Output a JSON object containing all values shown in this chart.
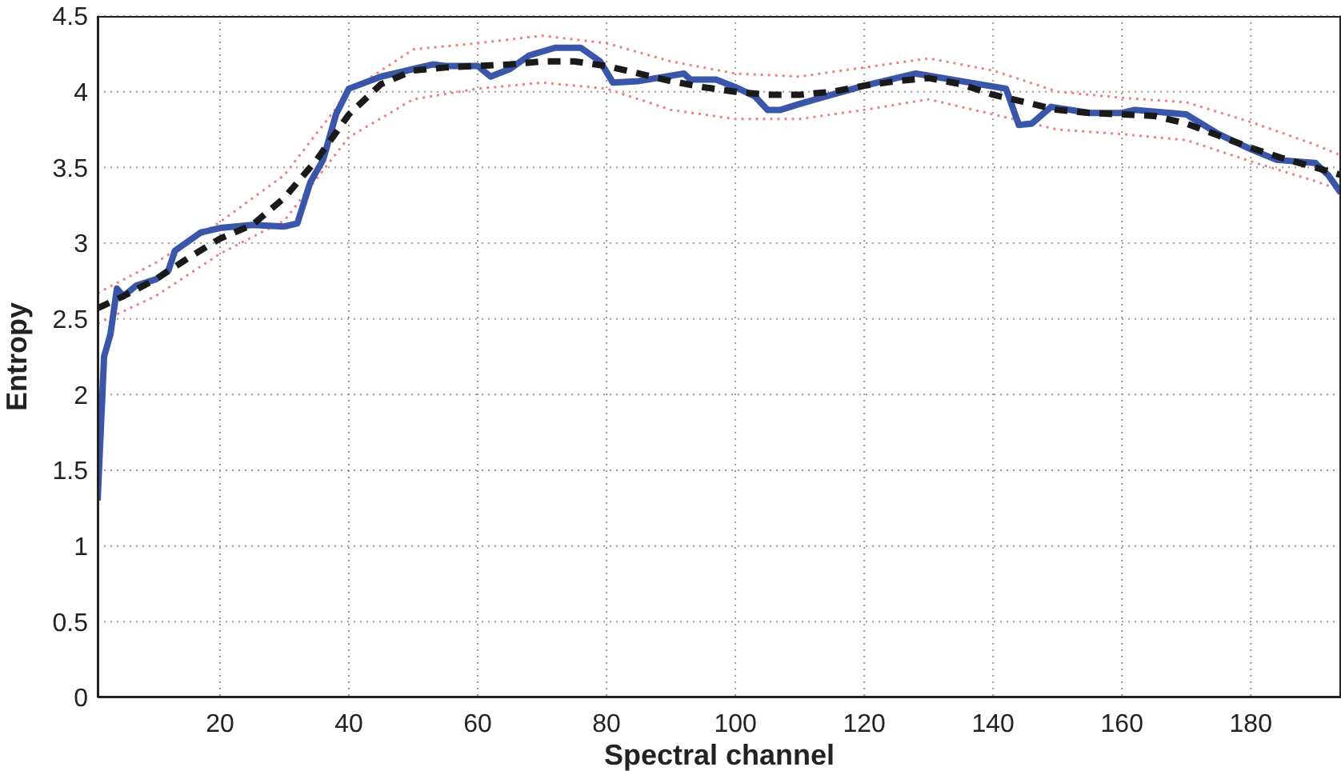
{
  "chart_data": {
    "type": "line",
    "xlabel": "Spectral channel",
    "ylabel": "Entropy",
    "xlim": [
      1,
      194
    ],
    "ylim": [
      0,
      4.5
    ],
    "xticks": [
      20,
      40,
      60,
      80,
      100,
      120,
      140,
      160,
      180
    ],
    "yticks": [
      0,
      0.5,
      1,
      1.5,
      2,
      2.5,
      3,
      3.5,
      4,
      4.5
    ],
    "grid": true,
    "series": [
      {
        "color": "#f08080",
        "line_style": "dotted",
        "x": [
          1,
          10,
          20,
          30,
          40,
          50,
          60,
          70,
          80,
          90,
          100,
          110,
          120,
          130,
          140,
          150,
          160,
          170,
          180,
          190,
          194
        ],
        "values": [
          2.67,
          2.87,
          3.14,
          3.45,
          4.0,
          4.28,
          4.32,
          4.37,
          4.32,
          4.2,
          4.12,
          4.1,
          4.16,
          4.22,
          4.14,
          4.0,
          3.96,
          3.93,
          3.8,
          3.65,
          3.58
        ]
      },
      {
        "color": "#f08080",
        "line_style": "dotted",
        "x": [
          1,
          10,
          20,
          30,
          40,
          50,
          60,
          70,
          80,
          90,
          100,
          110,
          120,
          130,
          140,
          150,
          160,
          170,
          180,
          190,
          194
        ],
        "values": [
          2.47,
          2.65,
          2.93,
          3.15,
          3.7,
          3.95,
          4.02,
          4.06,
          4.02,
          3.88,
          3.82,
          3.82,
          3.88,
          3.95,
          3.85,
          3.75,
          3.72,
          3.68,
          3.54,
          3.41,
          3.35
        ]
      },
      {
        "color": "#3a56a8",
        "line_style": "solid",
        "x": [
          1,
          2,
          3,
          4,
          5,
          7,
          10,
          12,
          13,
          17,
          20,
          25,
          30,
          32,
          34,
          36,
          38,
          40,
          45,
          50,
          53,
          55,
          60,
          62,
          65,
          68,
          72,
          76,
          79,
          81,
          85,
          92,
          93,
          97,
          100,
          103,
          105,
          107,
          110,
          115,
          120,
          125,
          128,
          135,
          142,
          144,
          146,
          149,
          155,
          160,
          162,
          170,
          175,
          180,
          184,
          190,
          192,
          194
        ],
        "values": [
          1.3,
          2.25,
          2.4,
          2.7,
          2.65,
          2.72,
          2.76,
          2.82,
          2.95,
          3.07,
          3.1,
          3.12,
          3.11,
          3.13,
          3.4,
          3.55,
          3.85,
          4.02,
          4.1,
          4.15,
          4.18,
          4.17,
          4.17,
          4.1,
          4.15,
          4.24,
          4.29,
          4.29,
          4.2,
          4.06,
          4.07,
          4.12,
          4.08,
          4.08,
          4.03,
          3.97,
          3.88,
          3.88,
          3.92,
          3.98,
          4.04,
          4.09,
          4.12,
          4.07,
          4.02,
          3.78,
          3.79,
          3.9,
          3.86,
          3.86,
          3.88,
          3.85,
          3.72,
          3.62,
          3.55,
          3.53,
          3.45,
          3.33
        ]
      },
      {
        "color": "#1a1a1a",
        "line_style": "dashed",
        "x": [
          1,
          5,
          10,
          15,
          20,
          25,
          30,
          35,
          40,
          45,
          50,
          55,
          60,
          65,
          70,
          75,
          80,
          85,
          90,
          95,
          100,
          105,
          110,
          115,
          120,
          125,
          130,
          135,
          140,
          145,
          150,
          155,
          160,
          165,
          170,
          175,
          180,
          185,
          190,
          194
        ],
        "values": [
          2.57,
          2.65,
          2.76,
          2.9,
          3.03,
          3.12,
          3.3,
          3.55,
          3.85,
          4.05,
          4.14,
          4.16,
          4.17,
          4.18,
          4.2,
          4.2,
          4.17,
          4.12,
          4.07,
          4.03,
          4.0,
          3.98,
          3.98,
          4.0,
          4.04,
          4.07,
          4.09,
          4.05,
          3.98,
          3.93,
          3.88,
          3.86,
          3.85,
          3.84,
          3.79,
          3.71,
          3.63,
          3.56,
          3.5,
          3.45
        ]
      }
    ]
  }
}
